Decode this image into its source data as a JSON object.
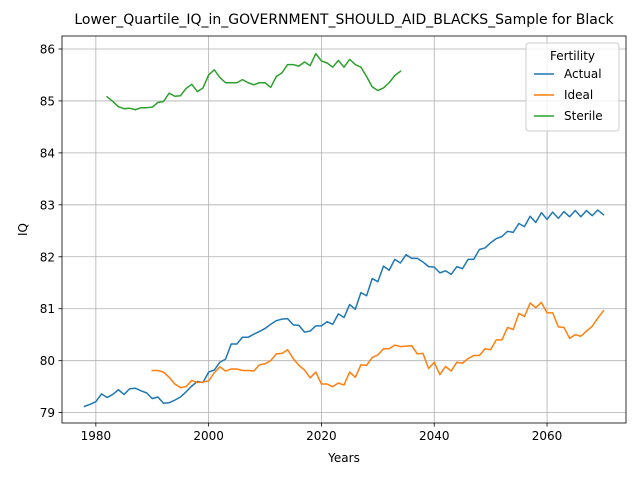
{
  "chart_data": {
    "type": "line",
    "title": "Lower_Quartile_IQ_in_GOVERNMENT_SHOULD_AID_BLACKS_Sample for Black",
    "xlabel": "Years",
    "ylabel": "IQ",
    "xlim": [
      1974,
      2074
    ],
    "ylim": [
      78.8,
      86.25
    ],
    "xticks": [
      1980,
      2000,
      2020,
      2040,
      2060
    ],
    "yticks": [
      79,
      80,
      81,
      82,
      83,
      84,
      85,
      86
    ],
    "grid": true,
    "legend": {
      "title": "Fertility",
      "placement": "top-right"
    },
    "series": [
      {
        "name": "Actual",
        "color": "#1f77b4",
        "x": [
          1978,
          1979,
          1980,
          1981,
          1982,
          1983,
          1984,
          1985,
          1986,
          1987,
          1988,
          1989,
          1990,
          1991,
          1992,
          1993,
          1994,
          1995,
          1996,
          1997,
          1998,
          1999,
          2000,
          2001,
          2002,
          2003,
          2004,
          2005,
          2006,
          2007,
          2008,
          2009,
          2010,
          2011,
          2012,
          2013,
          2014,
          2015,
          2016,
          2017,
          2018,
          2019,
          2020,
          2021,
          2022,
          2023,
          2024,
          2025,
          2026,
          2027,
          2028,
          2029,
          2030,
          2031,
          2032,
          2033,
          2034,
          2035,
          2036,
          2037,
          2038,
          2039,
          2040,
          2041,
          2042,
          2043,
          2044,
          2045,
          2046,
          2047,
          2048,
          2049,
          2050,
          2051,
          2052,
          2053,
          2054,
          2055,
          2056,
          2057,
          2058,
          2059,
          2060,
          2061,
          2062,
          2063,
          2064,
          2065,
          2066,
          2067,
          2068,
          2069,
          2070
        ],
        "values": [
          79.12,
          79.16,
          79.21,
          79.36,
          79.29,
          79.35,
          79.44,
          79.35,
          79.46,
          79.47,
          79.42,
          79.38,
          79.27,
          79.3,
          79.18,
          79.19,
          79.24,
          79.3,
          79.4,
          79.51,
          79.6,
          79.58,
          79.78,
          79.82,
          79.97,
          80.03,
          80.32,
          80.32,
          80.45,
          80.45,
          80.51,
          80.56,
          80.62,
          80.7,
          80.77,
          80.8,
          80.81,
          80.69,
          80.68,
          80.55,
          80.57,
          80.67,
          80.67,
          80.75,
          80.7,
          80.9,
          80.83,
          81.08,
          80.99,
          81.31,
          81.25,
          81.58,
          81.52,
          81.82,
          81.74,
          81.95,
          81.88,
          82.04,
          81.97,
          81.97,
          81.9,
          81.81,
          81.8,
          81.69,
          81.73,
          81.66,
          81.81,
          81.77,
          81.95,
          81.95,
          82.14,
          82.17,
          82.27,
          82.35,
          82.39,
          82.49,
          82.47,
          82.64,
          82.58,
          82.78,
          82.66,
          82.85,
          82.72,
          82.86,
          82.74,
          82.87,
          82.77,
          82.89,
          82.77,
          82.89,
          82.79,
          82.9,
          82.81
        ]
      },
      {
        "name": "Ideal",
        "color": "#ff7f0e",
        "x": [
          1990,
          1991,
          1992,
          1993,
          1994,
          1995,
          1996,
          1997,
          1998,
          1999,
          2000,
          2001,
          2002,
          2003,
          2004,
          2005,
          2006,
          2007,
          2008,
          2009,
          2010,
          2011,
          2012,
          2013,
          2014,
          2015,
          2016,
          2017,
          2018,
          2019,
          2020,
          2021,
          2022,
          2023,
          2024,
          2025,
          2026,
          2027,
          2028,
          2029,
          2030,
          2031,
          2032,
          2033,
          2034,
          2035,
          2036,
          2037,
          2038,
          2039,
          2040,
          2041,
          2042,
          2043,
          2044,
          2045,
          2046,
          2047,
          2048,
          2049,
          2050,
          2051,
          2052,
          2053,
          2054,
          2055,
          2056,
          2057,
          2058,
          2059,
          2060,
          2061,
          2062,
          2063,
          2064,
          2065,
          2066,
          2067,
          2068,
          2069,
          2070
        ],
        "values": [
          79.81,
          79.81,
          79.78,
          79.68,
          79.55,
          79.48,
          79.5,
          79.62,
          79.58,
          79.59,
          79.61,
          79.77,
          79.88,
          79.8,
          79.84,
          79.84,
          79.81,
          79.81,
          79.8,
          79.92,
          79.94,
          80.0,
          80.13,
          80.14,
          80.21,
          80.04,
          79.91,
          79.82,
          79.67,
          79.78,
          79.55,
          79.55,
          79.5,
          79.57,
          79.53,
          79.78,
          79.68,
          79.92,
          79.91,
          80.06,
          80.11,
          80.23,
          80.23,
          80.3,
          80.27,
          80.28,
          80.29,
          80.13,
          80.14,
          79.85,
          79.97,
          79.73,
          79.89,
          79.8,
          79.97,
          79.95,
          80.04,
          80.1,
          80.1,
          80.23,
          80.21,
          80.4,
          80.4,
          80.64,
          80.6,
          80.91,
          80.85,
          81.11,
          81.02,
          81.12,
          80.92,
          80.92,
          80.65,
          80.64,
          80.43,
          80.5,
          80.47,
          80.57,
          80.66,
          80.82,
          80.96
        ]
      },
      {
        "name": "Sterile",
        "color": "#2ca02c",
        "x": [
          1982,
          1983,
          1984,
          1985,
          1986,
          1987,
          1988,
          1989,
          1990,
          1991,
          1992,
          1993,
          1994,
          1995,
          1996,
          1997,
          1998,
          1999,
          2000,
          2001,
          2002,
          2003,
          2004,
          2005,
          2006,
          2007,
          2008,
          2009,
          2010,
          2011,
          2012,
          2013,
          2014,
          2015,
          2016,
          2017,
          2018,
          2019,
          2020,
          2021,
          2022,
          2023,
          2024,
          2025,
          2026,
          2027,
          2028,
          2029,
          2030,
          2031,
          2032,
          2033,
          2034
        ],
        "values": [
          85.08,
          84.99,
          84.89,
          84.85,
          84.86,
          84.83,
          84.87,
          84.87,
          84.88,
          84.97,
          84.99,
          85.15,
          85.09,
          85.1,
          85.24,
          85.32,
          85.18,
          85.25,
          85.5,
          85.6,
          85.45,
          85.35,
          85.35,
          85.35,
          85.41,
          85.35,
          85.31,
          85.35,
          85.35,
          85.26,
          85.47,
          85.54,
          85.7,
          85.7,
          85.67,
          85.75,
          85.68,
          85.91,
          85.77,
          85.73,
          85.65,
          85.78,
          85.65,
          85.8,
          85.7,
          85.65,
          85.47,
          85.27,
          85.2,
          85.25,
          85.35,
          85.49,
          85.57
        ]
      }
    ]
  }
}
